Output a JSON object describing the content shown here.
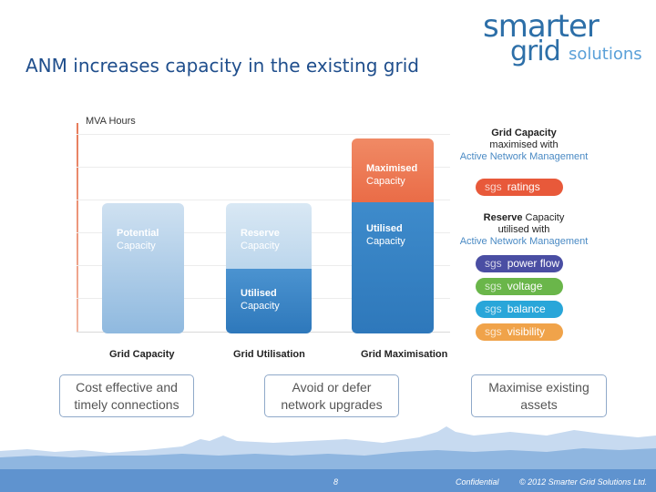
{
  "title": "ANM increases capacity in the existing grid",
  "logo": {
    "line1": "smarter",
    "line2": "grid",
    "line3": "solutions"
  },
  "chart": {
    "y_label": "MVA Hours",
    "categories": [
      "Grid Capacity",
      "Grid Utilisation",
      "Grid Maximisation"
    ],
    "bars": {
      "capacity": {
        "label1": "Potential",
        "label2": "Capacity"
      },
      "utilisation_reserve": {
        "label1": "Reserve",
        "label2": "Capacity"
      },
      "utilisation_used": {
        "label1": "Utilised",
        "label2": "Capacity"
      },
      "max_top": {
        "label1": "Maximised",
        "label2": "Capacity"
      },
      "max_bottom": {
        "label1": "Utilised",
        "label2": "Capacity"
      }
    }
  },
  "chart_data": {
    "type": "bar",
    "categories": [
      "Grid Capacity",
      "Grid Utilisation",
      "Grid Maximisation"
    ],
    "series": [
      {
        "name": "Potential Capacity",
        "values": [
          1.0,
          0,
          0
        ]
      },
      {
        "name": "Reserve Capacity",
        "values": [
          0,
          0.5,
          0
        ]
      },
      {
        "name": "Utilised Capacity",
        "values": [
          0,
          0.5,
          1.0
        ]
      },
      {
        "name": "Maximised Capacity",
        "values": [
          0,
          0,
          0.48
        ]
      }
    ],
    "ylabel": "MVA Hours",
    "stacked": true
  },
  "side": {
    "block1": {
      "line1": "Grid Capacity",
      "line2": "maximised with",
      "line3": "Active Network Management"
    },
    "block2": {
      "line1a": "Reserve",
      "line1b": "Capacity",
      "line2": "utilised with",
      "line3": "Active Network Management"
    }
  },
  "pills": [
    {
      "prefix": "sgs",
      "label": "ratings",
      "color": "#e8593a"
    },
    {
      "prefix": "sgs",
      "label": "power flow",
      "color": "#4a4ea3"
    },
    {
      "prefix": "sgs",
      "label": "voltage",
      "color": "#6ab64a"
    },
    {
      "prefix": "sgs",
      "label": "balance",
      "color": "#29a6d9"
    },
    {
      "prefix": "sgs",
      "label": "visibility",
      "color": "#f0a34a"
    }
  ],
  "boxes": [
    {
      "text1": "Cost effective and",
      "text2": "timely connections"
    },
    {
      "text1": "Avoid or defer",
      "text2": "network upgrades"
    },
    {
      "text1": "Maximise existing",
      "text2": "assets"
    }
  ],
  "footer": {
    "page": "8",
    "confidential": "Confidential",
    "copyright": "© 2012 Smarter Grid Solutions Ltd."
  },
  "colors": {
    "title": "#1f4e8c",
    "blue_dark": "#2f7bbf",
    "blue_light": "#a9cbe8",
    "orange": "#ee7752"
  }
}
